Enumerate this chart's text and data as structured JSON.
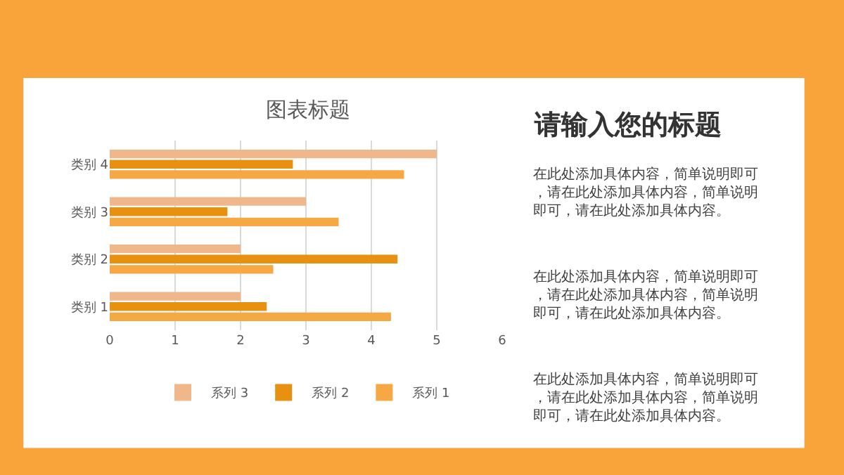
{
  "chart_data": [
    {
      "type": "bar",
      "title": "图表标题",
      "orientation": "horizontal",
      "categories": [
        "类别 4",
        "类别 3",
        "类别 2",
        "类别 1"
      ],
      "series": [
        {
          "name": "系列 3",
          "color": "#f0b88a",
          "values": [
            5,
            3,
            2,
            2
          ]
        },
        {
          "name": "系列 2",
          "color": "#e8900f",
          "values": [
            2.8,
            1.8,
            4.4,
            2.4
          ]
        },
        {
          "name": "系列 1",
          "color": "#f5a843",
          "values": [
            4.5,
            3.5,
            2.5,
            4.3
          ]
        }
      ],
      "xlim": [
        0,
        6
      ],
      "xticks": [
        0,
        1,
        2,
        3,
        4,
        5,
        6
      ],
      "grid": "x",
      "legend": "bottom"
    },
    {
      "type": "other",
      "title": "请输入您的标题",
      "annotations": [
        "在此处添加具体内容，简单说明即可，请在此处添加具体内容，简单说明即可，请在此处添加具体内容。",
        "在此处添加具体内容，简单说明即可，请在此处添加具体内容，简单说明即可，请在此处添加具体内容。",
        "在此处添加具体内容，简单说明即可，请在此处添加具体内容，简单说明即可，请在此处添加具体内容。"
      ]
    }
  ]
}
